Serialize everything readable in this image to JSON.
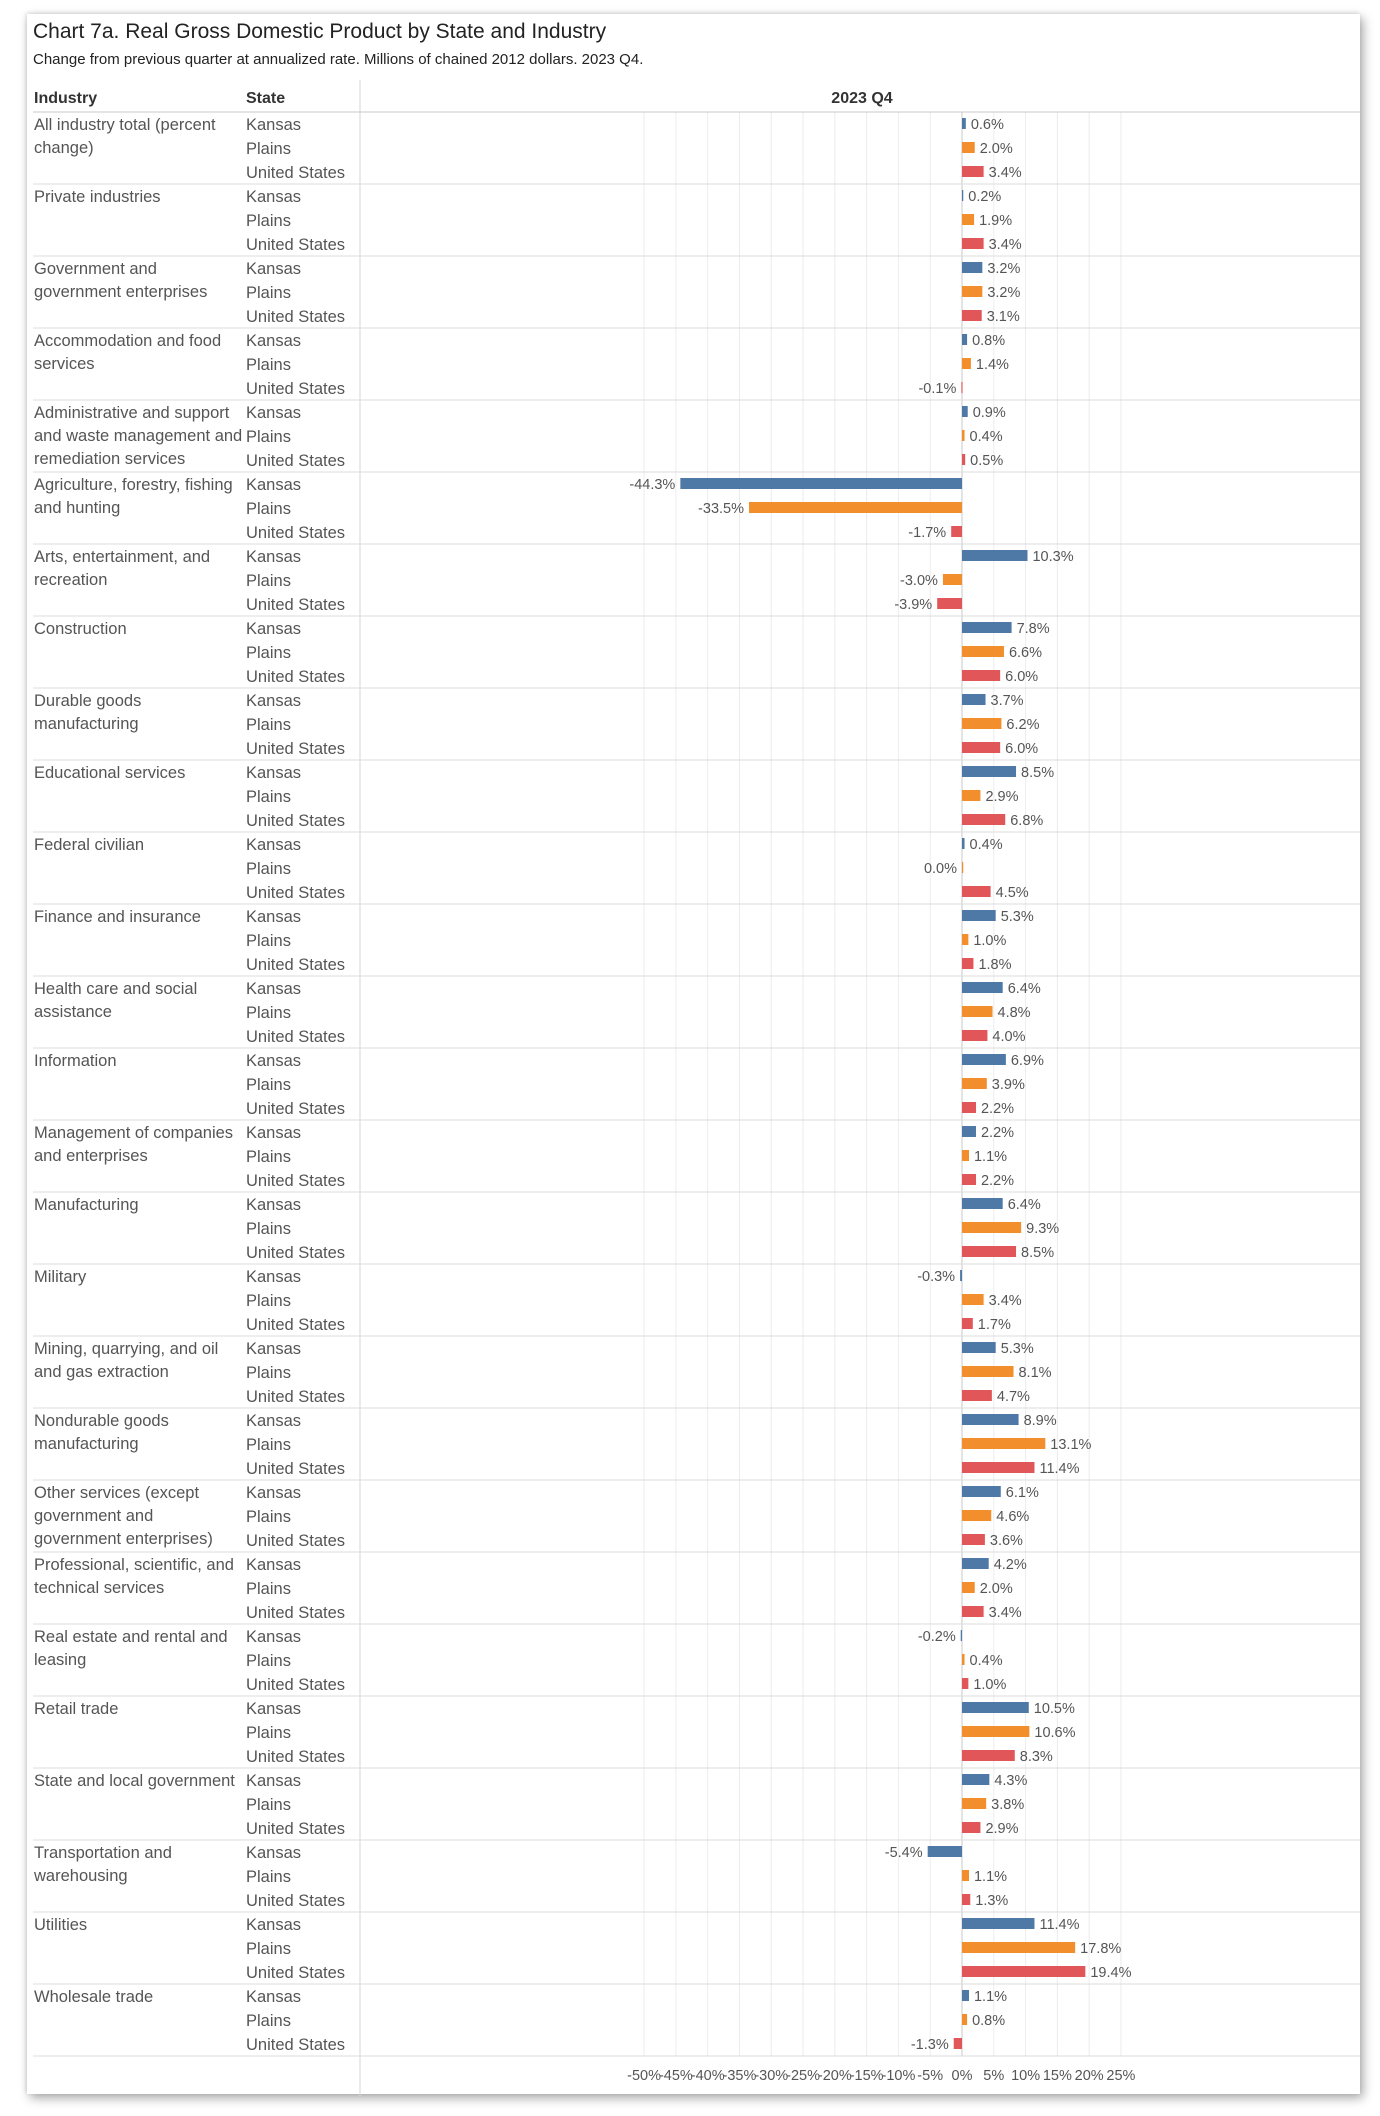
{
  "title": "Chart 7a. Real Gross Domestic Product by State and Industry",
  "subtitle": "Change from previous quarter at annualized rate. Millions of chained 2012 dollars. 2023 Q4.",
  "chart_data": {
    "type": "bar",
    "orientation": "horizontal",
    "column_headers": {
      "industry": "Industry",
      "state": "State",
      "period": "2023 Q4"
    },
    "states": [
      "Kansas",
      "Plains",
      "United States"
    ],
    "colors": {
      "Kansas": "#4E79A7",
      "Plains": "#F28E2B",
      "United States": "#E15759"
    },
    "xlim": [
      -52,
      25
    ],
    "x_ticks": [
      -50,
      -45,
      -40,
      -35,
      -30,
      -25,
      -20,
      -15,
      -10,
      -5,
      0,
      5,
      10,
      15,
      20,
      25
    ],
    "tick_suffix": "%",
    "grid": true,
    "industries": [
      {
        "label": [
          "All industry total (percent",
          "change)"
        ],
        "values": [
          0.6,
          2.0,
          3.4
        ]
      },
      {
        "label": [
          "Private industries"
        ],
        "values": [
          0.2,
          1.9,
          3.4
        ]
      },
      {
        "label": [
          "Government and",
          "government enterprises"
        ],
        "values": [
          3.2,
          3.2,
          3.1
        ]
      },
      {
        "label": [
          "Accommodation and food",
          "services"
        ],
        "values": [
          0.8,
          1.4,
          -0.1
        ]
      },
      {
        "label": [
          "Administrative and support",
          "and waste management and",
          "remediation services"
        ],
        "values": [
          0.9,
          0.4,
          0.5
        ]
      },
      {
        "label": [
          "Agriculture, forestry, fishing",
          "and hunting"
        ],
        "values": [
          -44.3,
          -33.5,
          -1.7
        ]
      },
      {
        "label": [
          "Arts, entertainment, and",
          "recreation"
        ],
        "values": [
          10.3,
          -3.0,
          -3.9
        ]
      },
      {
        "label": [
          "Construction"
        ],
        "values": [
          7.8,
          6.6,
          6.0
        ]
      },
      {
        "label": [
          "Durable goods",
          "manufacturing"
        ],
        "values": [
          3.7,
          6.2,
          6.0
        ]
      },
      {
        "label": [
          "Educational services"
        ],
        "values": [
          8.5,
          2.9,
          6.8
        ]
      },
      {
        "label": [
          "Federal civilian"
        ],
        "values": [
          0.4,
          0.0,
          4.5
        ]
      },
      {
        "label": [
          "Finance and insurance"
        ],
        "values": [
          5.3,
          1.0,
          1.8
        ]
      },
      {
        "label": [
          "Health care and social",
          "assistance"
        ],
        "values": [
          6.4,
          4.8,
          4.0
        ]
      },
      {
        "label": [
          "Information"
        ],
        "values": [
          6.9,
          3.9,
          2.2
        ]
      },
      {
        "label": [
          "Management of companies",
          "and enterprises"
        ],
        "values": [
          2.2,
          1.1,
          2.2
        ]
      },
      {
        "label": [
          "Manufacturing"
        ],
        "values": [
          6.4,
          9.3,
          8.5
        ]
      },
      {
        "label": [
          "Military"
        ],
        "values": [
          -0.3,
          3.4,
          1.7
        ]
      },
      {
        "label": [
          "Mining, quarrying, and oil",
          "and gas extraction"
        ],
        "values": [
          5.3,
          8.1,
          4.7
        ]
      },
      {
        "label": [
          "Nondurable goods",
          "manufacturing"
        ],
        "values": [
          8.9,
          13.1,
          11.4
        ]
      },
      {
        "label": [
          "Other services (except",
          "government and",
          "government enterprises)"
        ],
        "values": [
          6.1,
          4.6,
          3.6
        ]
      },
      {
        "label": [
          "Professional, scientific, and",
          "technical services"
        ],
        "values": [
          4.2,
          2.0,
          3.4
        ]
      },
      {
        "label": [
          "Real estate and rental and",
          "leasing"
        ],
        "values": [
          -0.2,
          0.4,
          1.0
        ]
      },
      {
        "label": [
          "Retail trade"
        ],
        "values": [
          10.5,
          10.6,
          8.3
        ]
      },
      {
        "label": [
          "State and local government"
        ],
        "values": [
          4.3,
          3.8,
          2.9
        ]
      },
      {
        "label": [
          "Transportation and",
          "warehousing"
        ],
        "values": [
          -5.4,
          1.1,
          1.3
        ]
      },
      {
        "label": [
          "Utilities"
        ],
        "values": [
          11.4,
          17.8,
          19.4
        ]
      },
      {
        "label": [
          "Wholesale trade"
        ],
        "values": [
          1.1,
          0.8,
          -1.3
        ]
      }
    ]
  }
}
